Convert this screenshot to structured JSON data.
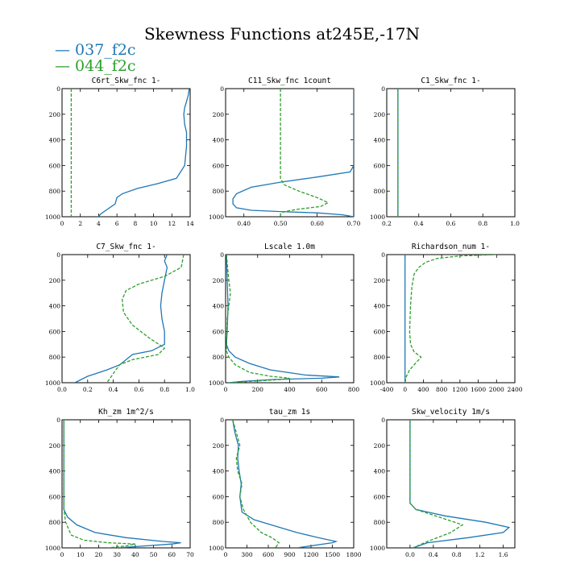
{
  "figure": {
    "title": "Skewness Functions at245E,-17N",
    "legend": [
      {
        "label": "037_f2c",
        "color": "#1f77b4"
      },
      {
        "label": "044_f2c",
        "color": "#2ca02c"
      }
    ]
  },
  "chart_data": [
    {
      "type": "line",
      "title": "C6rt_Skw_fnc   1-",
      "xlim": [
        0,
        14
      ],
      "ylim": [
        1000,
        0
      ],
      "xticks": [
        0,
        2,
        4,
        6,
        8,
        10,
        12,
        14
      ],
      "xtick_labels": [
        "0",
        "2",
        "4",
        "6",
        "8",
        "10",
        "12",
        "14"
      ],
      "yticks": [
        0,
        200,
        400,
        600,
        800,
        1000
      ],
      "ytick_labels": [
        "0",
        "200",
        "400",
        "600",
        "800",
        "1000"
      ],
      "series": [
        {
          "name": "037_f2c",
          "color": "#1f77b4",
          "dash": "",
          "x": [
            13.9,
            13.8,
            13.6,
            13.4,
            13.3,
            13.4,
            13.6,
            13.6,
            13.4,
            12.5,
            10.5,
            8.2,
            6.6,
            6.0,
            5.8,
            4.8,
            4.2,
            4.0
          ],
          "y": [
            0,
            50,
            100,
            150,
            200,
            280,
            340,
            450,
            600,
            700,
            740,
            780,
            820,
            850,
            900,
            950,
            980,
            1000
          ]
        },
        {
          "name": "044_f2c",
          "color": "#2ca02c",
          "dash": "4,2",
          "x": [
            1,
            1,
            1,
            1,
            1
          ],
          "y": [
            0,
            250,
            500,
            750,
            1000
          ]
        }
      ]
    },
    {
      "type": "line",
      "title": "C11_Skw_fnc   1count",
      "xlim": [
        0.35,
        0.7
      ],
      "ylim": [
        1000,
        0
      ],
      "xticks": [
        0.4,
        0.5,
        0.6,
        0.7
      ],
      "xtick_labels": [
        "0.40",
        "0.50",
        "0.60",
        "0.70"
      ],
      "yticks": [
        0,
        200,
        400,
        600,
        800,
        1000
      ],
      "ytick_labels": [
        "0",
        "200",
        "400",
        "600",
        "800",
        "1000"
      ],
      "series": [
        {
          "name": "037_f2c",
          "color": "#1f77b4",
          "dash": "",
          "x": [
            0.7,
            0.7,
            0.7,
            0.7,
            0.69,
            0.6,
            0.5,
            0.42,
            0.38,
            0.37,
            0.37,
            0.38,
            0.42,
            0.5,
            0.6,
            0.67,
            0.7
          ],
          "y": [
            0,
            200,
            400,
            600,
            650,
            690,
            730,
            770,
            820,
            860,
            900,
            930,
            950,
            960,
            970,
            985,
            1000
          ]
        },
        {
          "name": "044_f2c",
          "color": "#2ca02c",
          "dash": "4,2",
          "x": [
            0.5,
            0.5,
            0.5,
            0.5,
            0.5,
            0.51,
            0.55,
            0.6,
            0.63,
            0.61,
            0.55,
            0.51,
            0.5,
            0.5
          ],
          "y": [
            0,
            200,
            400,
            600,
            700,
            750,
            800,
            850,
            890,
            920,
            940,
            960,
            980,
            1000
          ]
        }
      ]
    },
    {
      "type": "line",
      "title": "C1_Skw_fnc   1-",
      "xlim": [
        0.2,
        1.0
      ],
      "ylim": [
        1000,
        0
      ],
      "xticks": [
        0.2,
        0.4,
        0.6,
        0.8,
        1.0
      ],
      "xtick_labels": [
        "0.2",
        "0.4",
        "0.6",
        "0.8",
        "1.0"
      ],
      "yticks": [
        0,
        200,
        400,
        600,
        800,
        1000
      ],
      "ytick_labels": [
        "0",
        "200",
        "400",
        "600",
        "800",
        "1000"
      ],
      "series": [
        {
          "name": "037_f2c",
          "color": "#1f77b4",
          "dash": "",
          "x": [
            0.27,
            0.27
          ],
          "y": [
            0,
            1000
          ]
        },
        {
          "name": "044_f2c",
          "color": "#2ca02c",
          "dash": "4,2",
          "x": [
            0.27,
            0.27
          ],
          "y": [
            0,
            1000
          ]
        }
      ]
    },
    {
      "type": "line",
      "title": "C7_Skw_fnc   1-",
      "xlim": [
        0.0,
        1.0
      ],
      "ylim": [
        1000,
        0
      ],
      "xticks": [
        0.0,
        0.2,
        0.4,
        0.6,
        0.8,
        1.0
      ],
      "xtick_labels": [
        "0.0",
        "0.2",
        "0.4",
        "0.6",
        "0.8",
        "1.0"
      ],
      "yticks": [
        0,
        200,
        400,
        600,
        800,
        1000
      ],
      "ytick_labels": [
        "0",
        "200",
        "400",
        "600",
        "800",
        "1000"
      ],
      "series": [
        {
          "name": "037_f2c",
          "color": "#1f77b4",
          "dash": "",
          "x": [
            0.82,
            0.8,
            0.82,
            0.8,
            0.78,
            0.77,
            0.78,
            0.8,
            0.8,
            0.7,
            0.55,
            0.5,
            0.45,
            0.35,
            0.2,
            0.1
          ],
          "y": [
            0,
            50,
            100,
            200,
            300,
            400,
            500,
            600,
            700,
            750,
            780,
            820,
            860,
            900,
            950,
            1000
          ]
        },
        {
          "name": "044_f2c",
          "color": "#2ca02c",
          "dash": "4,2",
          "x": [
            0.95,
            0.93,
            0.8,
            0.6,
            0.5,
            0.47,
            0.48,
            0.55,
            0.68,
            0.8,
            0.75,
            0.55,
            0.45,
            0.42,
            0.35
          ],
          "y": [
            0,
            100,
            170,
            230,
            280,
            350,
            450,
            550,
            650,
            730,
            780,
            820,
            860,
            900,
            1000
          ]
        }
      ]
    },
    {
      "type": "line",
      "title": "Lscale   1.0m",
      "xlim": [
        0,
        800
      ],
      "ylim": [
        1000,
        0
      ],
      "xticks": [
        0,
        200,
        400,
        600,
        800
      ],
      "xtick_labels": [
        "0",
        "200",
        "400",
        "600",
        "800"
      ],
      "yticks": [
        0,
        200,
        400,
        600,
        800,
        1000
      ],
      "ytick_labels": [
        "0",
        "200",
        "400",
        "600",
        "800",
        "1000"
      ],
      "series": [
        {
          "name": "037_f2c",
          "color": "#1f77b4",
          "dash": "",
          "x": [
            5,
            10,
            15,
            10,
            5,
            20,
            60,
            150,
            280,
            500,
            710,
            600,
            300,
            100,
            20
          ],
          "y": [
            0,
            200,
            400,
            600,
            700,
            750,
            800,
            850,
            900,
            940,
            955,
            965,
            975,
            990,
            1000
          ]
        },
        {
          "name": "044_f2c",
          "color": "#2ca02c",
          "dash": "4,2",
          "x": [
            5,
            20,
            30,
            10,
            5,
            20,
            60,
            150,
            280,
            400,
            350,
            150,
            30
          ],
          "y": [
            0,
            200,
            300,
            500,
            750,
            800,
            860,
            920,
            950,
            965,
            975,
            990,
            1000
          ]
        }
      ]
    },
    {
      "type": "line",
      "title": "Richardson_num   1-",
      "xlim": [
        -400,
        2400
      ],
      "ylim": [
        1000,
        0
      ],
      "xticks": [
        -400,
        0,
        400,
        800,
        1200,
        1600,
        2000,
        2400
      ],
      "xtick_labels": [
        "-400",
        "0",
        "400",
        "800",
        "1200",
        "1600",
        "2000",
        "2400"
      ],
      "yticks": [
        0,
        200,
        400,
        600,
        800,
        1000
      ],
      "ytick_labels": [
        "0",
        "200",
        "400",
        "600",
        "800",
        "1000"
      ],
      "series": [
        {
          "name": "037_f2c",
          "color": "#1f77b4",
          "dash": "",
          "x": [
            0,
            0
          ],
          "y": [
            0,
            1000
          ]
        },
        {
          "name": "044_f2c",
          "color": "#2ca02c",
          "dash": "4,2",
          "x": [
            2000,
            1200,
            700,
            450,
            300,
            200,
            150,
            120,
            100,
            120,
            200,
            350,
            250,
            100,
            30,
            0
          ],
          "y": [
            0,
            10,
            30,
            60,
            100,
            150,
            250,
            400,
            600,
            700,
            760,
            800,
            840,
            900,
            950,
            1000
          ]
        }
      ]
    },
    {
      "type": "line",
      "title": "Kh_zm   1m^2/s",
      "xlim": [
        0,
        70
      ],
      "ylim": [
        1000,
        0
      ],
      "xticks": [
        0,
        10,
        20,
        30,
        40,
        50,
        60,
        70
      ],
      "xtick_labels": [
        "0",
        "10",
        "20",
        "30",
        "40",
        "50",
        "60",
        "70"
      ],
      "yticks": [
        0,
        200,
        400,
        600,
        800,
        1000
      ],
      "ytick_labels": [
        "0",
        "200",
        "400",
        "600",
        "800",
        "1000"
      ],
      "series": [
        {
          "name": "037_f2c",
          "color": "#1f77b4",
          "dash": "",
          "x": [
            1,
            1,
            1,
            1,
            3,
            8,
            18,
            35,
            55,
            65,
            60,
            45,
            30
          ],
          "y": [
            0,
            200,
            400,
            700,
            760,
            820,
            880,
            920,
            950,
            960,
            970,
            985,
            1000
          ]
        },
        {
          "name": "044_f2c",
          "color": "#2ca02c",
          "dash": "4,2",
          "x": [
            1,
            1,
            1,
            2,
            5,
            12,
            25,
            40,
            35,
            25
          ],
          "y": [
            0,
            400,
            700,
            800,
            900,
            940,
            960,
            970,
            985,
            1000
          ]
        }
      ]
    },
    {
      "type": "line",
      "title": "tau_zm   1s",
      "xlim": [
        0,
        1800
      ],
      "ylim": [
        1000,
        0
      ],
      "xticks": [
        0,
        300,
        600,
        900,
        1200,
        1500,
        1800
      ],
      "xtick_labels": [
        "0",
        "300",
        "600",
        "900",
        "1200",
        "1500",
        "1800"
      ],
      "yticks": [
        0,
        200,
        400,
        600,
        800,
        1000
      ],
      "ytick_labels": [
        "0",
        "200",
        "400",
        "600",
        "800",
        "1000"
      ],
      "series": [
        {
          "name": "037_f2c",
          "color": "#1f77b4",
          "dash": "",
          "x": [
            100,
            130,
            180,
            170,
            190,
            220,
            200,
            230,
            400,
            700,
            1000,
            1300,
            1550,
            1500,
            1000
          ],
          "y": [
            0,
            100,
            200,
            300,
            400,
            500,
            600,
            720,
            780,
            830,
            880,
            920,
            950,
            960,
            1000
          ]
        },
        {
          "name": "044_f2c",
          "color": "#2ca02c",
          "dash": "4,2",
          "x": [
            100,
            150,
            200,
            150,
            170,
            230,
            200,
            250,
            350,
            500,
            650,
            750,
            700
          ],
          "y": [
            0,
            100,
            200,
            300,
            400,
            500,
            600,
            700,
            800,
            880,
            920,
            960,
            1000
          ]
        }
      ]
    },
    {
      "type": "line",
      "title": "Skw_velocity   1m/s",
      "xlim": [
        -0.4,
        1.8
      ],
      "ylim": [
        1000,
        0
      ],
      "xticks": [
        0.0,
        0.4,
        0.8,
        1.2,
        1.6
      ],
      "xtick_labels": [
        "0.0",
        "0.4",
        "0.8",
        "1.2",
        "1.6"
      ],
      "yticks": [
        0,
        200,
        400,
        600,
        800,
        1000
      ],
      "ytick_labels": [
        "0",
        "200",
        "400",
        "600",
        "800",
        "1000"
      ],
      "series": [
        {
          "name": "037_f2c",
          "color": "#1f77b4",
          "dash": "",
          "x": [
            0,
            0,
            0,
            0,
            0.1,
            0.6,
            1.3,
            1.7,
            1.6,
            1.0,
            0.3,
            0.05
          ],
          "y": [
            0,
            300,
            600,
            650,
            700,
            750,
            800,
            840,
            880,
            920,
            960,
            1000
          ]
        },
        {
          "name": "044_f2c",
          "color": "#2ca02c",
          "dash": "4,2",
          "x": [
            0,
            0,
            0,
            0,
            0.1,
            0.5,
            0.9,
            0.7,
            0.3,
            0.05
          ],
          "y": [
            0,
            300,
            600,
            650,
            700,
            760,
            820,
            880,
            950,
            1000
          ]
        }
      ]
    }
  ]
}
